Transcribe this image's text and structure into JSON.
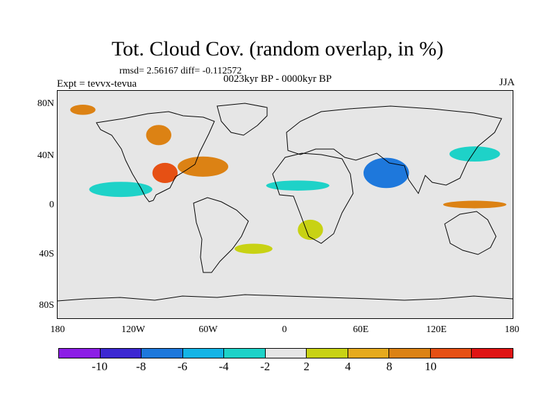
{
  "header": {
    "title": "Tot. Cloud Cov. (random overlap, in %)",
    "stats": "rmsd= 2.56167 diff= -0.112572",
    "subtitle": "0023kyr BP - 0000kyr BP",
    "experiment": "Expt = tevvx-tevua",
    "season": "JJA"
  },
  "axes": {
    "y_labels": [
      "80N",
      "40N",
      "0",
      "40S",
      "80S"
    ],
    "x_labels": [
      "180",
      "120W",
      "60W",
      "0",
      "60E",
      "120E",
      "180"
    ]
  },
  "colorbar": {
    "colors": [
      "#8c1ee6",
      "#3c28d2",
      "#1e78dc",
      "#14b4e6",
      "#1ed2c8",
      "#e6e6e6",
      "#c8d214",
      "#e6aa1e",
      "#dc8214",
      "#e65014",
      "#e01414"
    ],
    "labels": [
      "-10",
      "-8",
      "-6",
      "-4",
      "-2",
      "2",
      "4",
      "8",
      "10"
    ]
  },
  "map": {
    "background_color": "#e6e6e6",
    "projection": "cylindrical-equidistant",
    "lon_range": [
      -180,
      180
    ],
    "lat_range": [
      -90,
      90
    ],
    "anomaly_patches": [
      {
        "lon": -95,
        "lat": 25,
        "rx": 10,
        "ry": 8,
        "color": "#e65014"
      },
      {
        "lon": -65,
        "lat": 30,
        "rx": 20,
        "ry": 8,
        "color": "#dc8214"
      },
      {
        "lon": -130,
        "lat": 12,
        "rx": 12,
        "ry": 4,
        "color": "#3c28d2"
      },
      {
        "lon": -130,
        "lat": 12,
        "rx": 25,
        "ry": 6,
        "color": "#1ed2c8"
      },
      {
        "lon": 80,
        "lat": 25,
        "rx": 10,
        "ry": 10,
        "color": "#8c1ee6"
      },
      {
        "lon": 80,
        "lat": 25,
        "rx": 18,
        "ry": 12,
        "color": "#1e78dc"
      },
      {
        "lon": 150,
        "lat": 0,
        "rx": 25,
        "ry": 3,
        "color": "#dc8214"
      },
      {
        "lon": 10,
        "lat": 15,
        "rx": 25,
        "ry": 4,
        "color": "#1ed2c8"
      },
      {
        "lon": -160,
        "lat": 75,
        "rx": 10,
        "ry": 4,
        "color": "#dc8214"
      },
      {
        "lon": -100,
        "lat": 55,
        "rx": 10,
        "ry": 8,
        "color": "#dc8214"
      },
      {
        "lon": 20,
        "lat": -20,
        "rx": 10,
        "ry": 8,
        "color": "#c8d214"
      },
      {
        "lon": -25,
        "lat": -35,
        "rx": 15,
        "ry": 4,
        "color": "#c8d214"
      },
      {
        "lon": 150,
        "lat": 40,
        "rx": 20,
        "ry": 6,
        "color": "#1ed2c8"
      }
    ]
  }
}
